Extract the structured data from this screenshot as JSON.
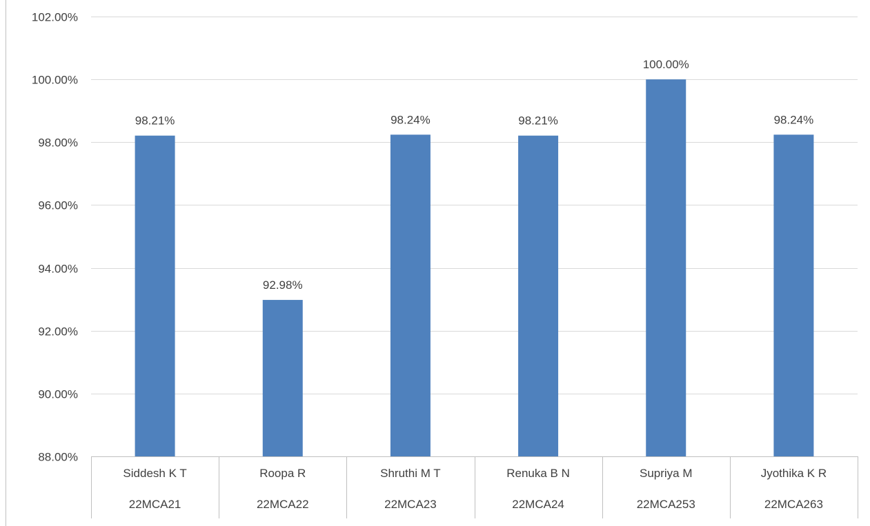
{
  "chart_data": {
    "type": "bar",
    "categories": [
      {
        "name": "Siddesh K T",
        "id": "22MCA21"
      },
      {
        "name": "Roopa R",
        "id": "22MCA22"
      },
      {
        "name": "Shruthi M T",
        "id": "22MCA23"
      },
      {
        "name": "Renuka B N",
        "id": "22MCA24"
      },
      {
        "name": "Supriya M",
        "id": "22MCA253"
      },
      {
        "name": "Jyothika K R",
        "id": "22MCA263"
      }
    ],
    "values": [
      98.21,
      92.98,
      98.24,
      98.21,
      100.0,
      98.24
    ],
    "data_labels": [
      "98.21%",
      "92.98%",
      "98.24%",
      "98.21%",
      "100.00%",
      "98.24%"
    ],
    "y_ticks": [
      "88.00%",
      "90.00%",
      "92.00%",
      "94.00%",
      "96.00%",
      "98.00%",
      "100.00%",
      "102.00%"
    ],
    "ylim": [
      88,
      102
    ],
    "title": "",
    "xlabel": "",
    "ylabel": "",
    "grid": true,
    "legend": false,
    "colors": {
      "bar": "#4f81bd",
      "grid": "#d9d9d9",
      "axis": "#bfbfbf",
      "text": "#404040"
    }
  }
}
